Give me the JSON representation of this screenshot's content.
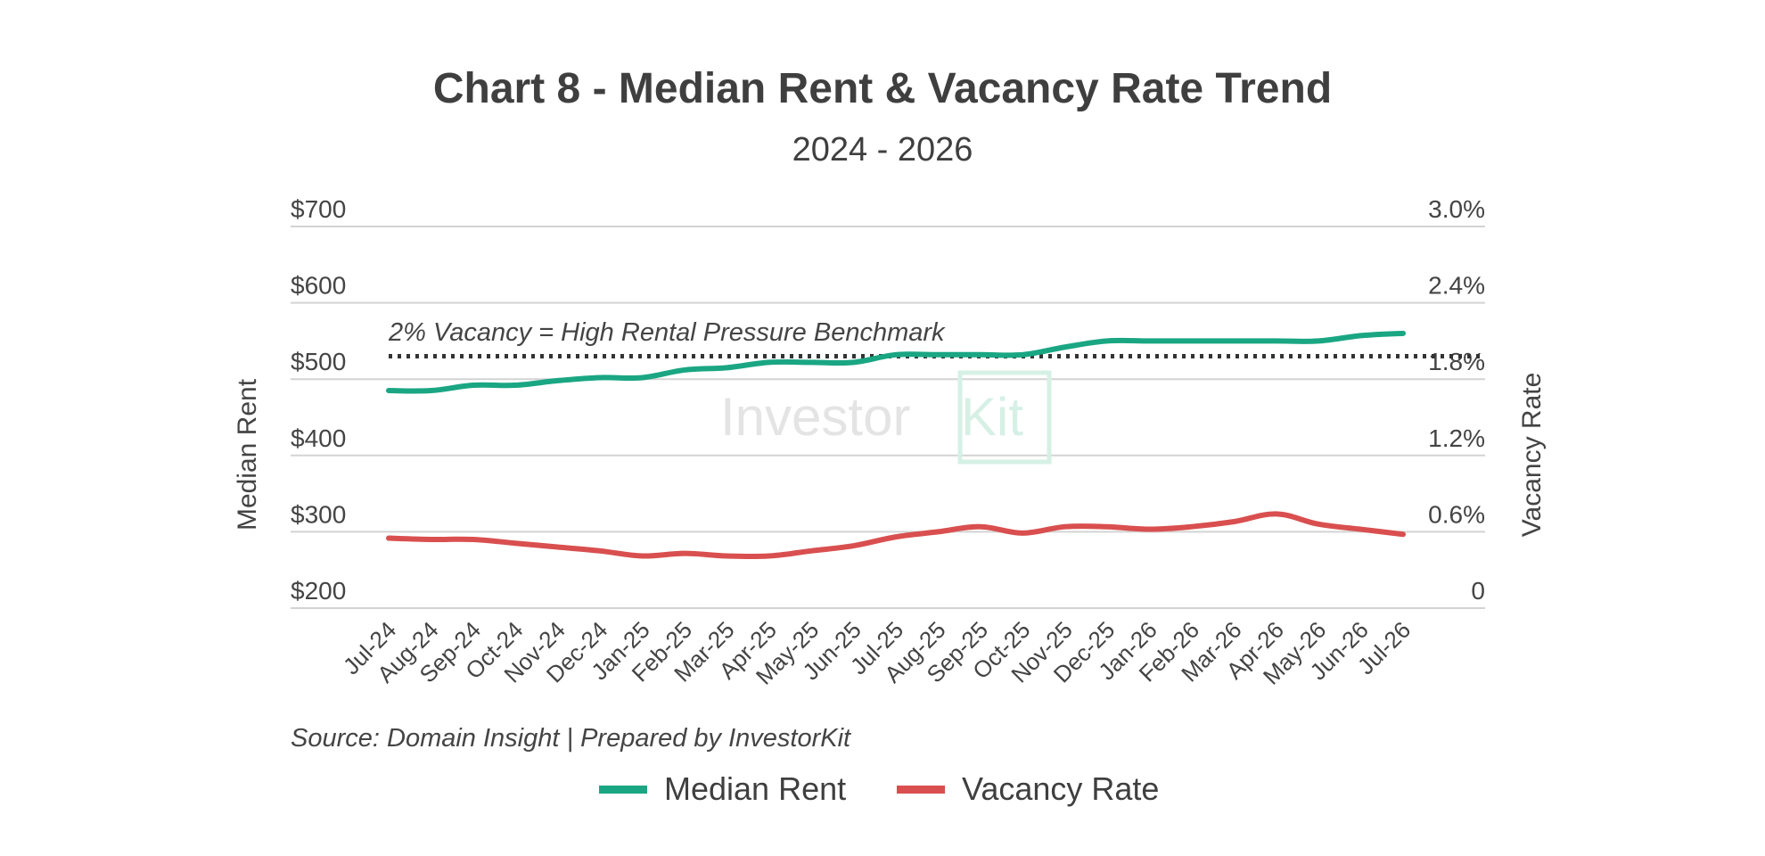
{
  "chart_data": {
    "type": "line",
    "title": "Chart 8 - Median Rent & Vacancy Rate Trend",
    "subtitle": "2024 - 2026",
    "ylabel": "Median Rent",
    "y2label": "Vacancy Rate",
    "ylim": [
      200,
      700
    ],
    "y2lim": [
      0,
      3.0
    ],
    "yticks": [
      "$700",
      "$600",
      "$500",
      "$400",
      "$300",
      "$200"
    ],
    "y2ticks": [
      "3.0%",
      "2.4%",
      "1.8%",
      "1.2%",
      "0.6%",
      "0"
    ],
    "categories": [
      "Jul-24",
      "Aug-24",
      "Sep-24",
      "Oct-24",
      "Nov-24",
      "Dec-24",
      "Jan-25",
      "Feb-25",
      "Mar-25",
      "Apr-25",
      "May-25",
      "Jun-25",
      "Jul-25",
      "Aug-25",
      "Sep-25",
      "Oct-25",
      "Nov-25",
      "Dec-25",
      "Jan-26",
      "Feb-26",
      "Mar-26",
      "Apr-26",
      "May-26",
      "Jun-26",
      "Jul-26"
    ],
    "series": [
      {
        "name": "Median Rent",
        "axis": "left",
        "color": "#1aa683",
        "values": [
          485,
          485,
          492,
          492,
          498,
          502,
          502,
          512,
          515,
          522,
          522,
          522,
          532,
          532,
          532,
          532,
          542,
          550,
          550,
          550,
          550,
          550,
          550,
          557,
          560
        ]
      },
      {
        "name": "Vacancy Rate",
        "axis": "right",
        "color": "#d94f4f",
        "values": [
          0.55,
          0.54,
          0.54,
          0.51,
          0.48,
          0.45,
          0.41,
          0.43,
          0.41,
          0.41,
          0.45,
          0.49,
          0.56,
          0.6,
          0.64,
          0.59,
          0.64,
          0.64,
          0.62,
          0.64,
          0.68,
          0.74,
          0.66,
          0.62,
          0.58
        ]
      }
    ],
    "benchmark": {
      "axis": "right",
      "value": 1.98,
      "label": "2% Vacancy = High Rental Pressure Benchmark",
      "style": "dotted"
    },
    "source": "Source: Domain Insight | Prepared by InvestorKit",
    "legend_placement": "bottom",
    "grid": true,
    "watermark": {
      "part1": "Investor",
      "part2": "Kit"
    }
  }
}
